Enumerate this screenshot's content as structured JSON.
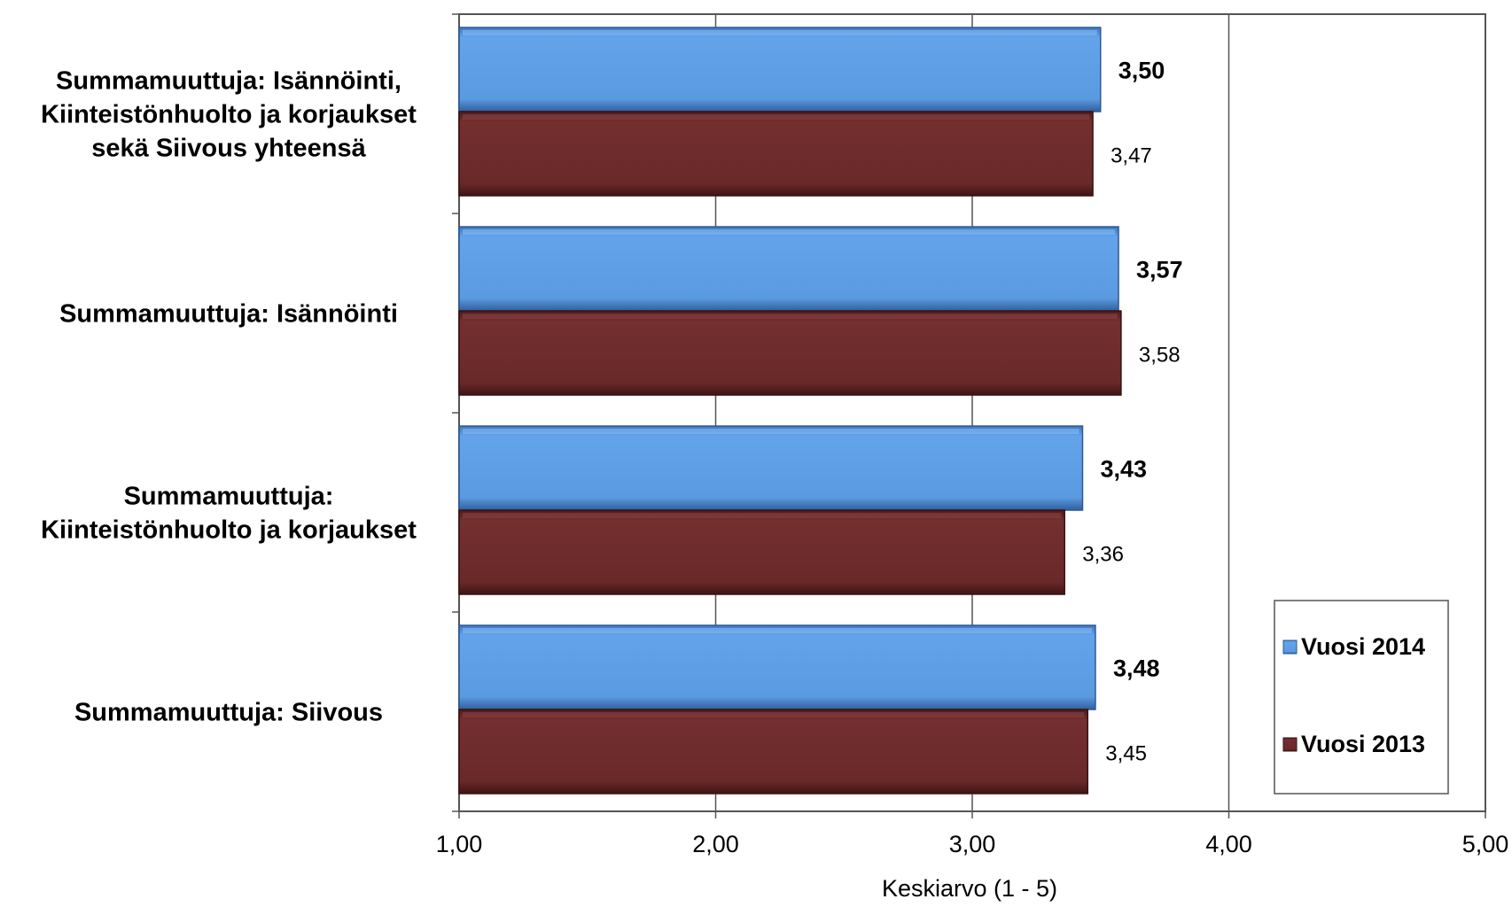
{
  "chart_data": {
    "type": "bar",
    "orientation": "horizontal",
    "categories": [
      [
        "Summamuuttuja: Isännöinti,",
        "Kiinteistönhuolto ja korjaukset",
        "sekä Siivous yhteensä"
      ],
      [
        "Summamuuttuja: Isännöinti"
      ],
      [
        "Summamuuttuja:",
        "Kiinteistönhuolto ja korjaukset"
      ],
      [
        "Summamuuttuja: Siivous"
      ]
    ],
    "series": [
      {
        "name": "Vuosi 2014",
        "color": "#5b9be0",
        "values": [
          3.5,
          3.57,
          3.43,
          3.48
        ],
        "labels": [
          "3,50",
          "3,57",
          "3,43",
          "3,48"
        ],
        "label_bold": true
      },
      {
        "name": "Vuosi 2013",
        "color": "#6b2a2a",
        "values": [
          3.47,
          3.58,
          3.36,
          3.45
        ],
        "labels": [
          "3,47",
          "3,58",
          "3,36",
          "3,45"
        ],
        "label_bold": false
      }
    ],
    "xlim": [
      1,
      5
    ],
    "xticks": [
      1,
      2,
      3,
      4,
      5
    ],
    "xtick_labels": [
      "1,00",
      "2,00",
      "3,00",
      "4,00",
      "5,00"
    ],
    "xlabel": "Keskiarvo (1 - 5)",
    "grid": true,
    "legend": "bottom-right"
  }
}
